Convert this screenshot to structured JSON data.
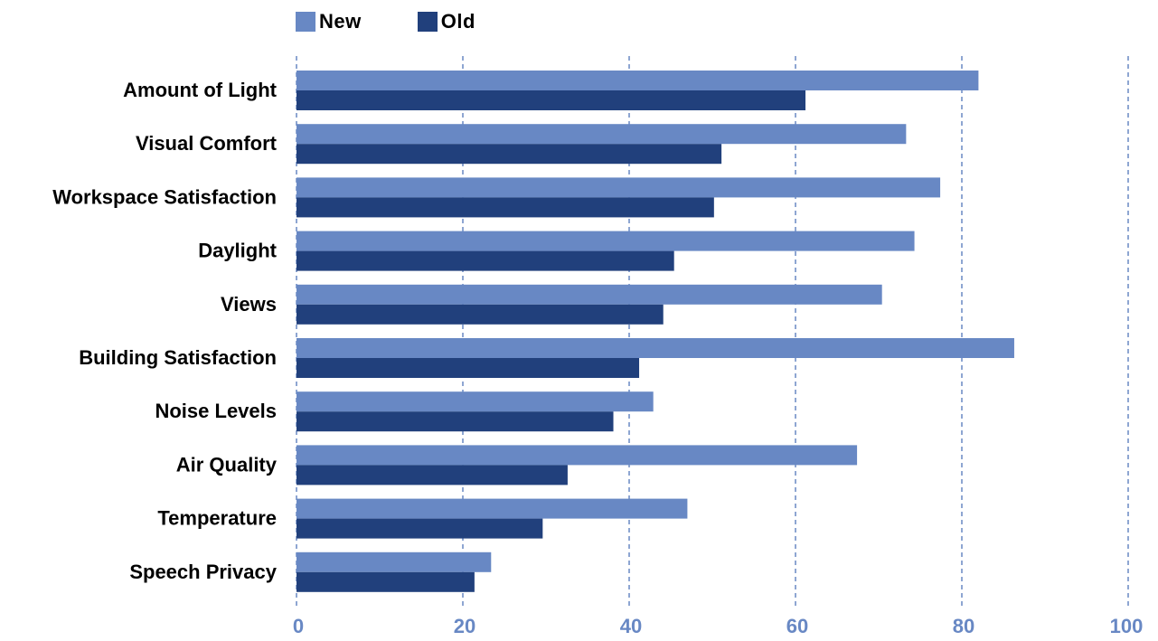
{
  "chart_data": {
    "type": "bar",
    "orientation": "horizontal",
    "title": "",
    "xlabel": "",
    "ylabel": "",
    "xlim": [
      0,
      100
    ],
    "x_ticks": [
      0,
      20,
      40,
      60,
      80,
      100
    ],
    "grid": "vertical-dashed",
    "legend_position": "top-left",
    "categories": [
      "Amount of Light",
      "Visual Comfort",
      "Workspace Satisfaction",
      "Daylight",
      "Views",
      "Building Satisfaction",
      "Noise Levels",
      "Air Quality",
      "Temperature",
      "Speech Privacy"
    ],
    "series": [
      {
        "name": "New",
        "color": "#6888c4",
        "values": [
          82,
          73.3,
          77.4,
          74.3,
          70.4,
          86.3,
          42.9,
          67.4,
          47,
          23.4
        ]
      },
      {
        "name": "Old",
        "color": "#21407c",
        "values": [
          61.2,
          51.1,
          50.2,
          45.4,
          44.1,
          41.2,
          38.1,
          32.6,
          29.6,
          21.4
        ]
      }
    ],
    "colors": {
      "grid": "#6888c4",
      "tick_label": "#6888c4",
      "category_label": "#000000"
    }
  }
}
